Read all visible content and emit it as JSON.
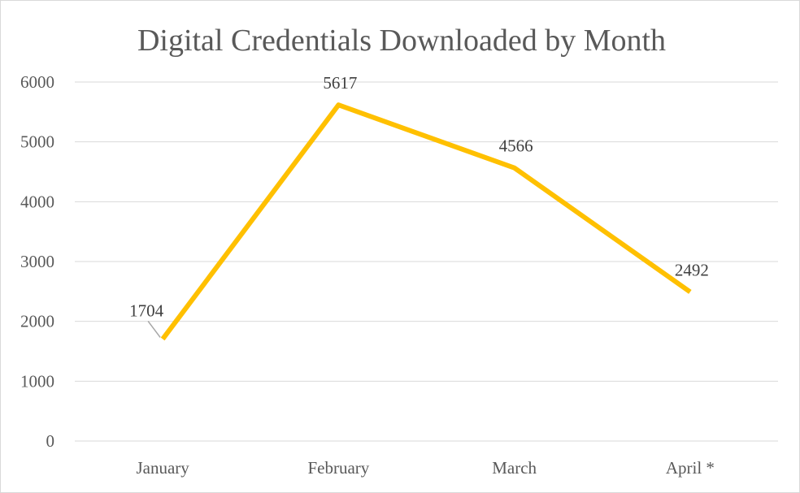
{
  "chart_data": {
    "type": "line",
    "title": "Digital Credentials Downloaded by Month",
    "xlabel": "",
    "ylabel": "",
    "categories": [
      "January",
      "February",
      "March",
      "April *"
    ],
    "series": [
      {
        "values": [
          1704,
          5617,
          4566,
          2492
        ],
        "color": "#FFC000"
      }
    ],
    "ylim": [
      0,
      6000
    ],
    "yticks": [
      0,
      1000,
      2000,
      3000,
      4000,
      5000,
      6000
    ],
    "grid": true,
    "legend": "none",
    "data_labels": true
  }
}
